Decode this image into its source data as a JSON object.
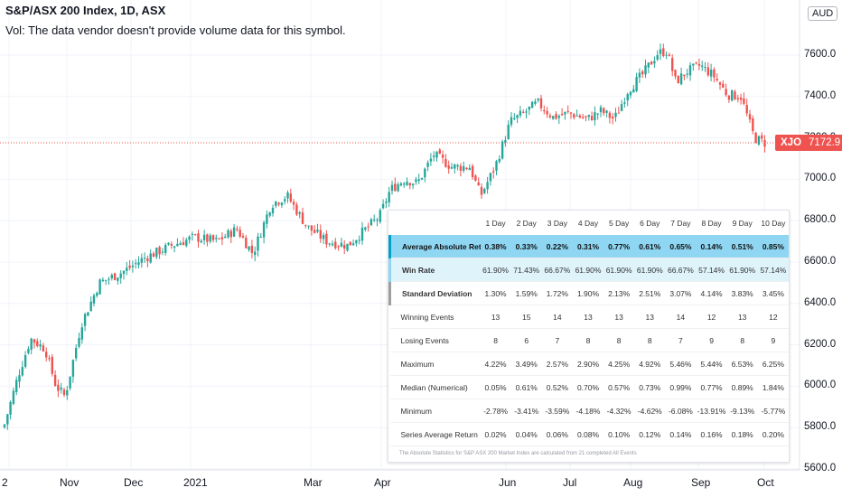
{
  "header": {
    "title": "S&P/ASX 200 Index, 1D, ASX",
    "volume_note": "Vol: The data vendor doesn't provide volume data for this symbol."
  },
  "currency": "AUD",
  "price_tag": {
    "symbol": "XJO",
    "value": "7172.9"
  },
  "colors": {
    "up": "#26a69a",
    "down": "#ef5350",
    "tag": "#ef5350",
    "highlight": "#8fd6f2"
  },
  "chart_data": {
    "type": "candlestick",
    "title": "S&P/ASX 200 Index, 1D, ASX",
    "ylim": [
      5600,
      7700
    ],
    "yticks": [
      "7600.0",
      "7400.0",
      "7200.0",
      "7000.0",
      "6800.0",
      "6600.0",
      "6400.0",
      "6200.0",
      "6000.0",
      "5800.0",
      "5600.0"
    ],
    "xticks": [
      "2",
      "Nov",
      "Dec",
      "2021",
      "Mar",
      "Apr",
      "Jun",
      "Jul",
      "Aug",
      "Sep",
      "Oct"
    ],
    "current_price": 7172.9,
    "approx_close_path": [
      {
        "x": "2",
        "y": 5800
      },
      {
        "x": "Nov-early",
        "y": 6230
      },
      {
        "x": "Nov",
        "y": 5950
      },
      {
        "x": "Dec",
        "y": 6550
      },
      {
        "x": "Dec-mid",
        "y": 6650
      },
      {
        "x": "2021",
        "y": 6750
      },
      {
        "x": "Feb",
        "y": 6900
      },
      {
        "x": "Mar",
        "y": 6700
      },
      {
        "x": "Apr",
        "y": 6800
      },
      {
        "x": "Apr-mid",
        "y": 7050
      },
      {
        "x": "May",
        "y": 7000
      },
      {
        "x": "Jun",
        "y": 7300
      },
      {
        "x": "Jun-mid",
        "y": 7350
      },
      {
        "x": "Jul",
        "y": 7300
      },
      {
        "x": "Aug",
        "y": 7550
      },
      {
        "x": "Aug-mid",
        "y": 7630
      },
      {
        "x": "Sep",
        "y": 7520
      },
      {
        "x": "Sep-mid",
        "y": 7400
      },
      {
        "x": "Oct",
        "y": 7172.9
      }
    ]
  },
  "stats_panel": {
    "columns": [
      "1 Day",
      "2 Day",
      "3 Day",
      "4 Day",
      "5 Day",
      "6 Day",
      "7 Day",
      "8 Day",
      "9 Day",
      "10 Day"
    ],
    "rows": [
      {
        "label": "Average Absolute Return",
        "values": [
          "0.38%",
          "0.33%",
          "0.22%",
          "0.31%",
          "0.77%",
          "0.61%",
          "0.65%",
          "0.14%",
          "0.51%",
          "0.85%"
        ]
      },
      {
        "label": "Win Rate",
        "values": [
          "61.90%",
          "71.43%",
          "66.67%",
          "61.90%",
          "61.90%",
          "61.90%",
          "66.67%",
          "57.14%",
          "61.90%",
          "57.14%"
        ]
      },
      {
        "label": "Standard Deviation",
        "values": [
          "1.30%",
          "1.59%",
          "1.72%",
          "1.90%",
          "2.13%",
          "2.51%",
          "3.07%",
          "4.14%",
          "3.83%",
          "3.45%"
        ]
      },
      {
        "label": "Winning Events",
        "values": [
          "13",
          "15",
          "14",
          "13",
          "13",
          "13",
          "14",
          "12",
          "13",
          "12"
        ]
      },
      {
        "label": "Losing Events",
        "values": [
          "8",
          "6",
          "7",
          "8",
          "8",
          "8",
          "7",
          "9",
          "8",
          "9"
        ]
      },
      {
        "label": "Maximum",
        "values": [
          "4.22%",
          "3.49%",
          "2.57%",
          "2.90%",
          "4.25%",
          "4.92%",
          "5.46%",
          "5.44%",
          "6.53%",
          "6.25%"
        ]
      },
      {
        "label": "Median (Numerical)",
        "values": [
          "0.05%",
          "0.61%",
          "0.52%",
          "0.70%",
          "0.57%",
          "0.73%",
          "0.99%",
          "0.77%",
          "0.89%",
          "1.84%"
        ]
      },
      {
        "label": "Minimum",
        "values": [
          "-2.78%",
          "-3.41%",
          "-3.59%",
          "-4.18%",
          "-4.32%",
          "-4.62%",
          "-6.08%",
          "-13.91%",
          "-9.13%",
          "-5.77%"
        ]
      },
      {
        "label": "Series Average Return",
        "values": [
          "0.02%",
          "0.04%",
          "0.06%",
          "0.08%",
          "0.10%",
          "0.12%",
          "0.14%",
          "0.16%",
          "0.18%",
          "0.20%"
        ]
      }
    ],
    "footnote": "The Absolute Statistics for S&P ASX 200 Market Index are calculated from 21 completed All Events"
  }
}
